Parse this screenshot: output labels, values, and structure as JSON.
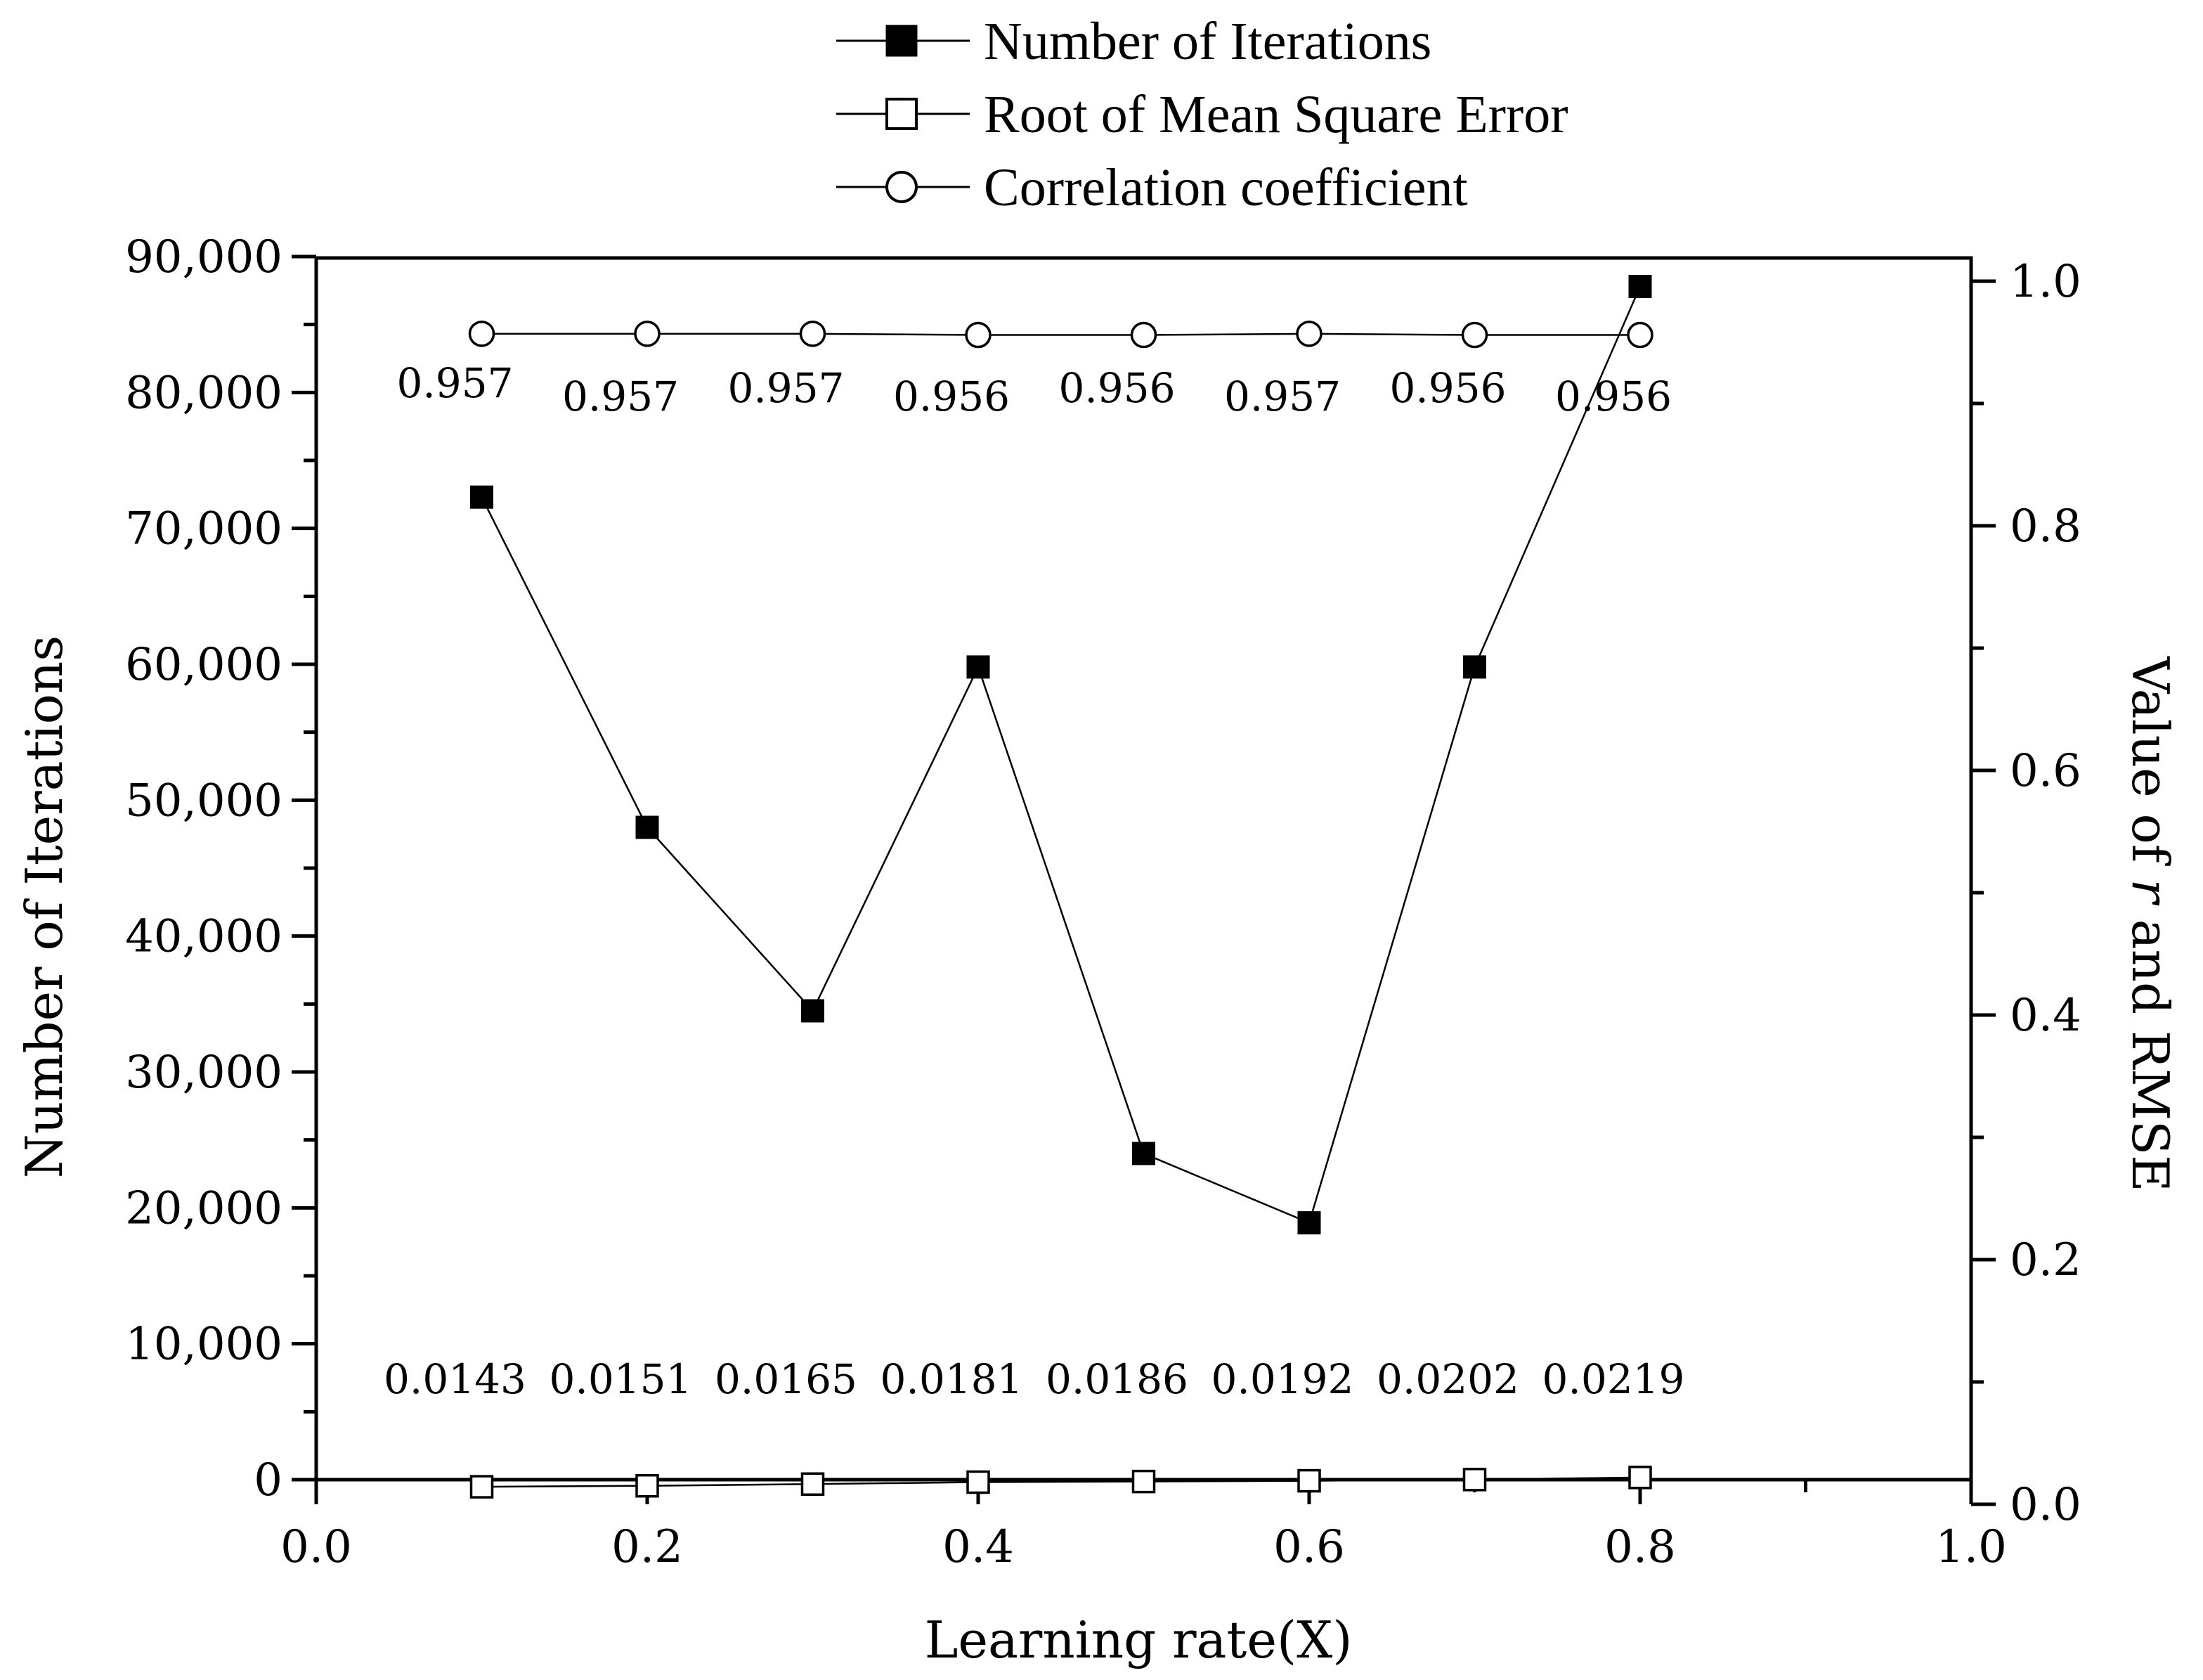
{
  "chart_data": {
    "type": "line",
    "x": [
      0.1,
      0.2,
      0.3,
      0.4,
      0.5,
      0.6,
      0.7,
      0.8
    ],
    "xlabel": "Learning rate(X)",
    "xlim": [
      0.0,
      1.0
    ],
    "xticks": [
      "0.0",
      "0.2",
      "0.4",
      "0.6",
      "0.8",
      "1.0"
    ],
    "ylabel_left": "Number of Iterations",
    "ylim_left": [
      0,
      90000
    ],
    "yticks_left": [
      "0",
      "10,000",
      "20,000",
      "30,000",
      "40,000",
      "50,000",
      "60,000",
      "70,000",
      "80,000",
      "90,000"
    ],
    "ylabel_right_prefix": "Value of ",
    "ylabel_right_var": "r",
    "ylabel_right_suffix": " and RMSE",
    "ylim_right": [
      0.0,
      1.0
    ],
    "yticks_right": [
      "0.0",
      "0.2",
      "0.4",
      "0.6",
      "0.8",
      "1.0"
    ],
    "grid": false,
    "legend_position": "top-center",
    "series": [
      {
        "name": "Number of Iterations",
        "axis": "left",
        "marker": "filled-square",
        "values": [
          72300,
          48000,
          34500,
          59800,
          24000,
          18900,
          59800,
          87800
        ]
      },
      {
        "name": "Root of Mean Square Error",
        "axis": "right",
        "marker": "open-square",
        "values": [
          0.0143,
          0.0151,
          0.0165,
          0.0181,
          0.0186,
          0.0192,
          0.0202,
          0.0219
        ],
        "labels": [
          "0.0143",
          "0.0151",
          "0.0165",
          "0.0181",
          "0.0186",
          "0.0192",
          "0.0202",
          "0.0219"
        ]
      },
      {
        "name": "Correlation coefficient",
        "axis": "right",
        "marker": "open-circle",
        "values": [
          0.957,
          0.957,
          0.957,
          0.956,
          0.956,
          0.957,
          0.956,
          0.956
        ],
        "labels": [
          "0.957",
          "0.957",
          "0.957",
          "0.956",
          "0.956",
          "0.957",
          "0.956",
          "0.956"
        ]
      }
    ]
  }
}
